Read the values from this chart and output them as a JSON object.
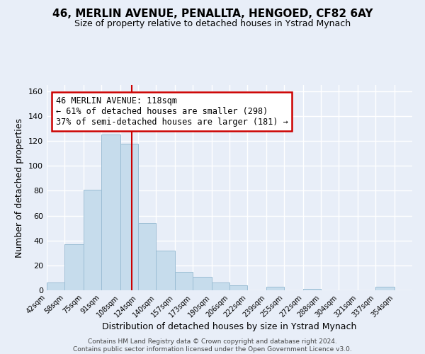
{
  "title": "46, MERLIN AVENUE, PENALLTA, HENGOED, CF82 6AY",
  "subtitle": "Size of property relative to detached houses in Ystrad Mynach",
  "xlabel": "Distribution of detached houses by size in Ystrad Mynach",
  "ylabel": "Number of detached properties",
  "bar_edges": [
    42,
    58,
    75,
    91,
    108,
    124,
    140,
    157,
    173,
    190,
    206,
    222,
    239,
    255,
    272,
    288,
    304,
    321,
    337,
    354,
    370
  ],
  "bar_heights": [
    6,
    37,
    81,
    125,
    118,
    54,
    32,
    15,
    11,
    6,
    4,
    0,
    3,
    0,
    1,
    0,
    0,
    0,
    3,
    0
  ],
  "bar_color": "#c6dcec",
  "bar_edge_color": "#9bbdd4",
  "vline_x": 118,
  "vline_color": "#cc0000",
  "ylim": [
    0,
    165
  ],
  "yticks": [
    0,
    20,
    40,
    60,
    80,
    100,
    120,
    140,
    160
  ],
  "annotation_title": "46 MERLIN AVENUE: 118sqm",
  "annotation_line1": "← 61% of detached houses are smaller (298)",
  "annotation_line2": "37% of semi-detached houses are larger (181) →",
  "footer_line1": "Contains HM Land Registry data © Crown copyright and database right 2024.",
  "footer_line2": "Contains public sector information licensed under the Open Government Licence v3.0.",
  "background_color": "#e8eef8",
  "grid_color": "#ffffff"
}
